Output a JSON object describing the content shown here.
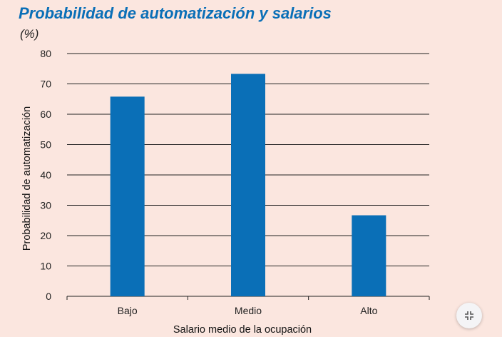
{
  "title": "Probabilidad de automatización y salarios",
  "unit": "(%)",
  "colors": {
    "bar": "#0a6fb7",
    "title": "#0a6fb7",
    "background": "#fbe6df",
    "grid": "#222222"
  },
  "chart_data": {
    "type": "bar",
    "categories": [
      "Bajo",
      "Medio",
      "Alto"
    ],
    "values": [
      65.8,
      73.3,
      26.7
    ],
    "xlabel": "Salario medio de la ocupación",
    "ylabel": "Probabilidad de automatización",
    "ylim": [
      0,
      80
    ],
    "yticks": [
      0,
      10,
      20,
      30,
      40,
      50,
      60,
      70,
      80
    ],
    "grid": true
  },
  "controls": {
    "fullscreen_icon": "collapse-arrows-icon"
  }
}
